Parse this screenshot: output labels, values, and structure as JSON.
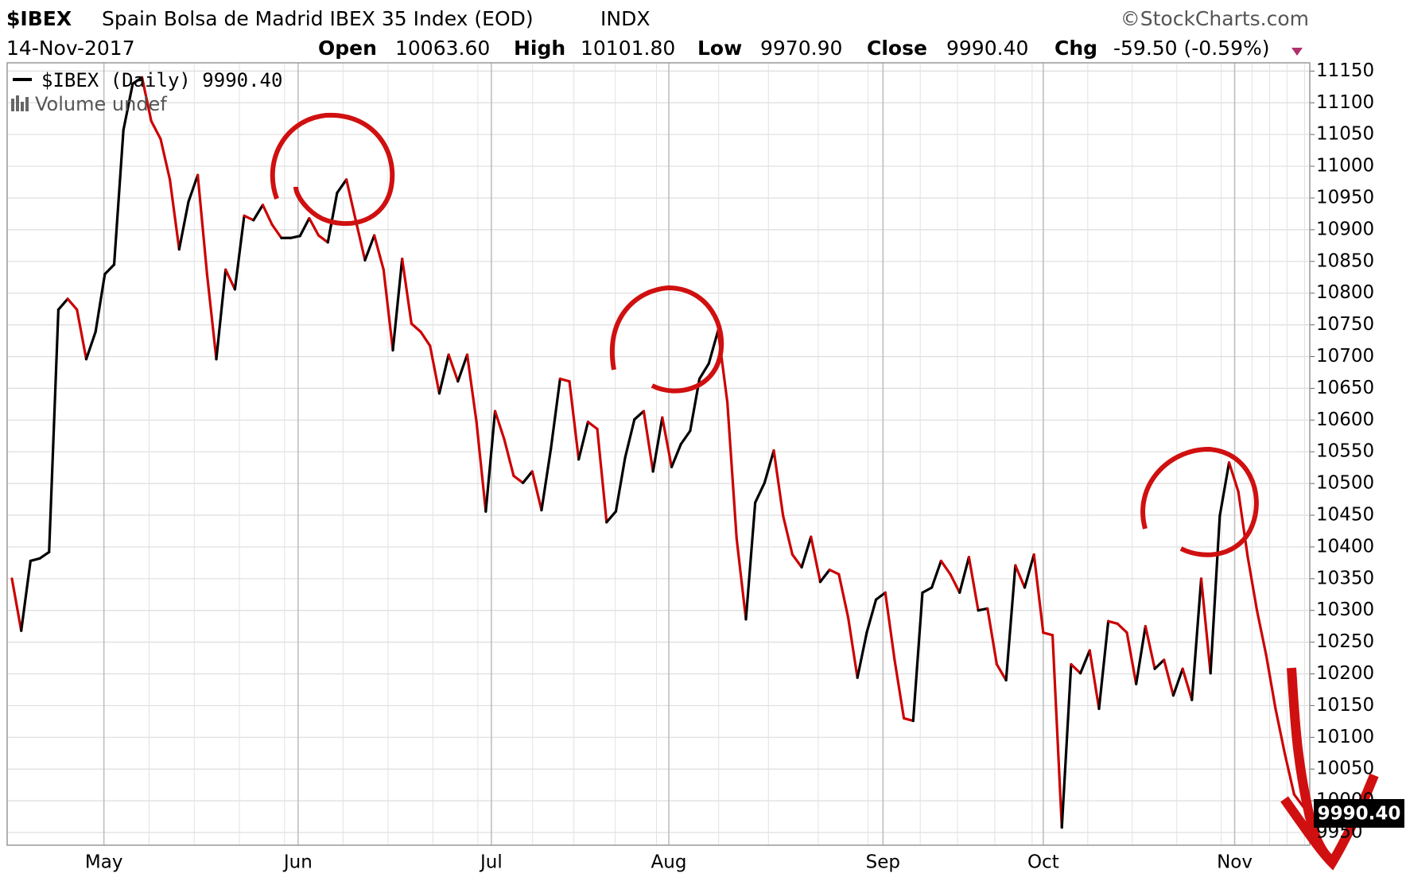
{
  "header": {
    "symbol": "$IBEX",
    "name": "Spain Bolsa de Madrid IBEX 35 Index (EOD)",
    "exchange": "INDX",
    "source": "©StockCharts.com",
    "date": "14-Nov-2017",
    "open_label": "Open",
    "open": "10063.60",
    "high_label": "High",
    "high": "10101.80",
    "low_label": "Low",
    "low": "9970.90",
    "close_label": "Close",
    "close": "9990.40",
    "chg_label": "Chg",
    "chg": "-59.50 (-0.59%)"
  },
  "legend": {
    "series": "$IBEX (Daily) 9990.40",
    "volume": "Volume undef"
  },
  "chart_data": {
    "type": "line",
    "up_color": "#000000",
    "down_color": "#cc0000",
    "grid": true,
    "values": [
      10350,
      10268,
      10378,
      10382,
      10392,
      10774,
      10791,
      10774,
      10696,
      10739,
      10830,
      10845,
      11057,
      11130,
      11140,
      11071,
      11043,
      10979,
      10869,
      10944,
      10986,
      10830,
      10696,
      10837,
      10806,
      10922,
      10915,
      10939,
      10908,
      10887,
      10887,
      10890,
      10918,
      10891,
      10880,
      10958,
      10979,
      10915,
      10852,
      10891,
      10837,
      10710,
      10854,
      10752,
      10739,
      10717,
      10642,
      10703,
      10661,
      10703,
      10597,
      10456,
      10614,
      10569,
      10512,
      10501,
      10519,
      10458,
      10554,
      10665,
      10661,
      10538,
      10597,
      10586,
      10439,
      10456,
      10541,
      10601,
      10614,
      10519,
      10604,
      10526,
      10562,
      10583,
      10665,
      10689,
      10741,
      10628,
      10413,
      10286,
      10470,
      10501,
      10552,
      10449,
      10388,
      10368,
      10416,
      10345,
      10364,
      10357,
      10289,
      10194,
      10265,
      10317,
      10328,
      10222,
      10130,
      10126,
      10328,
      10336,
      10378,
      10357,
      10328,
      10384,
      10300,
      10303,
      10215,
      10190,
      10371,
      10336,
      10388,
      10265,
      10261,
      9958,
      10215,
      10201,
      10237,
      10145,
      10283,
      10279,
      10265,
      10184,
      10275,
      10208,
      10222,
      10166,
      10208,
      10159,
      10350,
      10201,
      10449,
      10533,
      10487,
      10385,
      10300,
      10229,
      10145,
      10074,
      10010,
      9990.4
    ],
    "xticks": [
      {
        "value": 9.9,
        "label": "May"
      },
      {
        "value": 30.8,
        "label": "Jun"
      },
      {
        "value": 51.6,
        "label": "Jul"
      },
      {
        "value": 70.7,
        "label": "Aug"
      },
      {
        "value": 93.75,
        "label": "Sep"
      },
      {
        "value": 111,
        "label": "Oct"
      },
      {
        "value": 131.6,
        "label": "Nov"
      }
    ],
    "ylim": [
      9930,
      11163
    ],
    "yticks": [
      9950,
      10000,
      10050,
      10100,
      10150,
      10200,
      10250,
      10300,
      10350,
      10400,
      10450,
      10500,
      10550,
      10600,
      10650,
      10700,
      10750,
      10800,
      10850,
      10900,
      10950,
      11000,
      11050,
      11100,
      11150
    ]
  }
}
